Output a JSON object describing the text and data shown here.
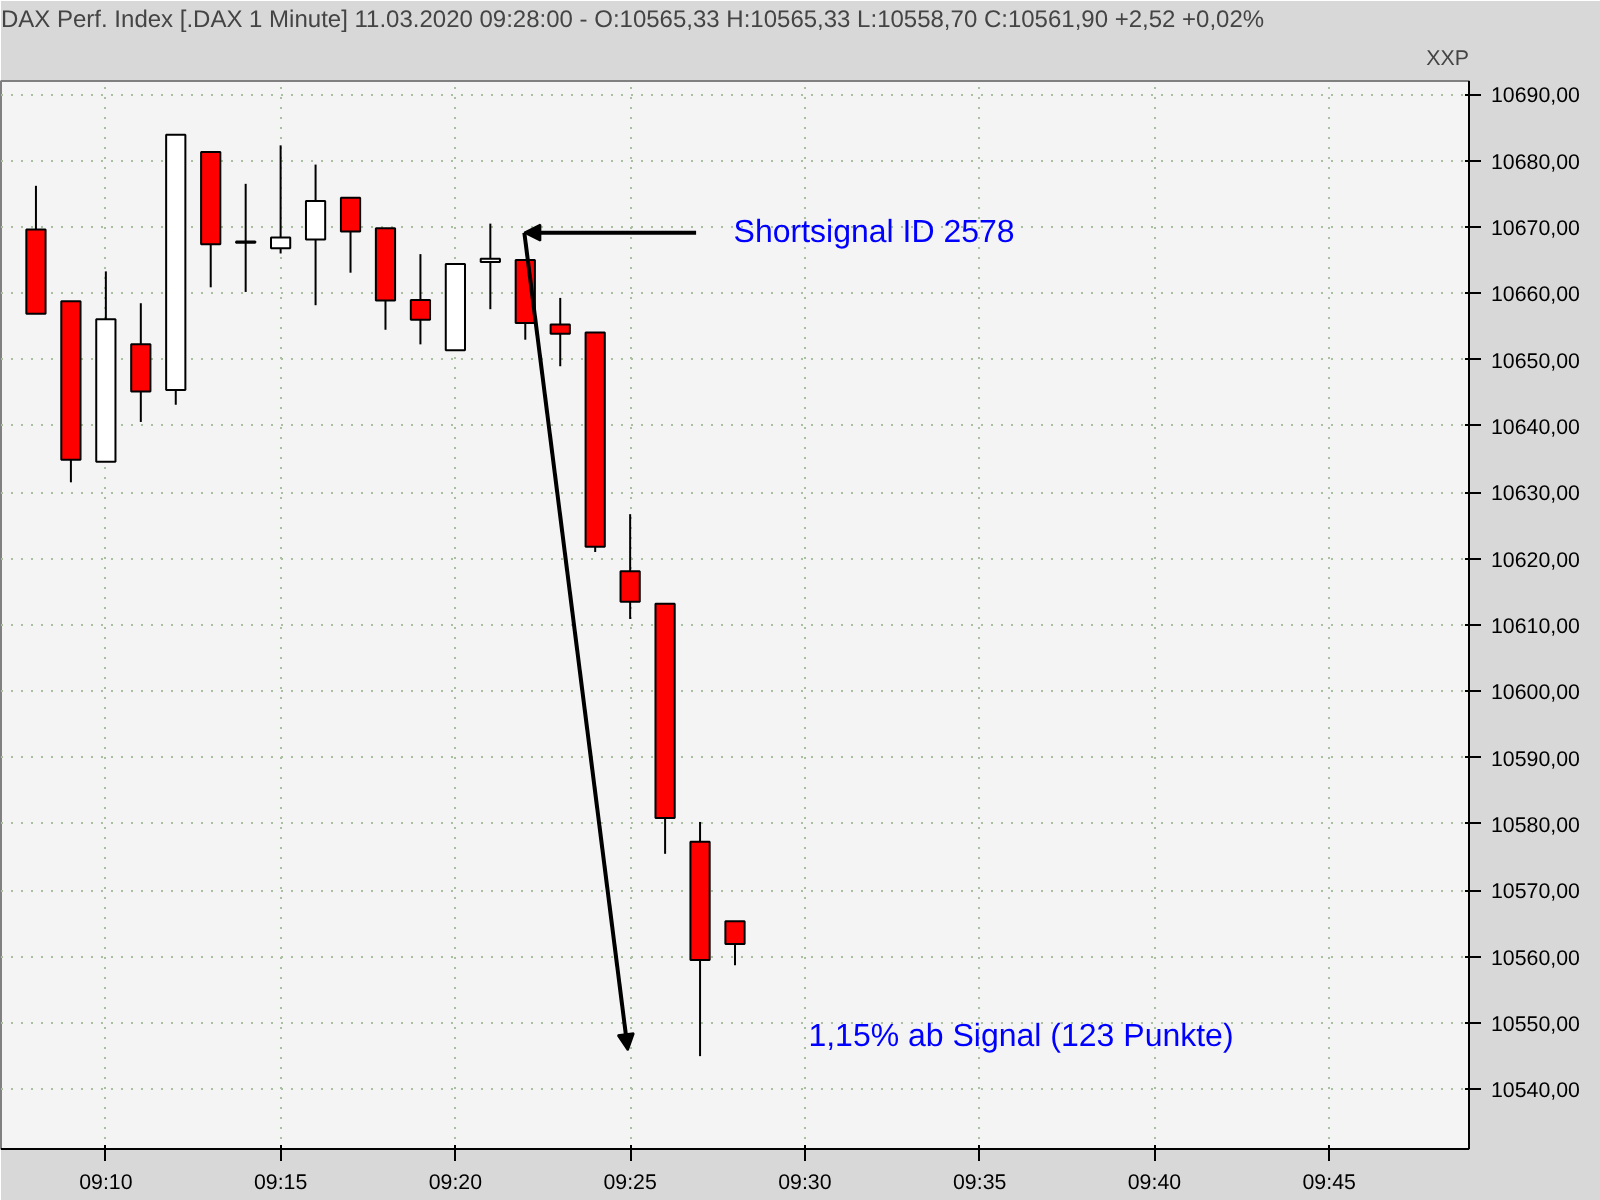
{
  "chart_data": {
    "type": "candlestick",
    "title": "DAX Perf. Index [.DAX  1 Minute] 11.03.2020 09:28:00 - O:10565,33 H:10565,33 L:10558,70 C:10561,90 +2,52 +0,02%",
    "ylabel": "XXP",
    "x": [
      "2020-03-11T09:08",
      "2020-03-11T09:09",
      "2020-03-11T09:10",
      "2020-03-11T09:11",
      "2020-03-11T09:12",
      "2020-03-11T09:13",
      "2020-03-11T09:14",
      "2020-03-11T09:15",
      "2020-03-11T09:16",
      "2020-03-11T09:17",
      "2020-03-11T09:18",
      "2020-03-11T09:19",
      "2020-03-11T09:20",
      "2020-03-11T09:21",
      "2020-03-11T09:22",
      "2020-03-11T09:23",
      "2020-03-11T09:24",
      "2020-03-11T09:25",
      "2020-03-11T09:26",
      "2020-03-11T09:27",
      "2020-03-11T09:28"
    ],
    "ohlc": [
      [
        10669.6,
        10676.2,
        10656.9,
        10656.9
      ],
      [
        10658.8,
        10658.8,
        10631.5,
        10634.9
      ],
      [
        10634.6,
        10663.3,
        10634.6,
        10656.1
      ],
      [
        10652.3,
        10658.5,
        10640.6,
        10645.2
      ],
      [
        10645.4,
        10683.9,
        10643.2,
        10683.9
      ],
      [
        10681.3,
        10681.3,
        10660.9,
        10667.4
      ],
      [
        10667.8,
        10676.5,
        10660.2,
        10667.6
      ],
      [
        10666.8,
        10682.3,
        10666.0,
        10668.4
      ],
      [
        10668.1,
        10679.4,
        10658.2,
        10673.9
      ],
      [
        10674.4,
        10674.4,
        10663.1,
        10669.3
      ],
      [
        10669.8,
        10669.8,
        10654.5,
        10658.9
      ],
      [
        10659.0,
        10665.9,
        10652.3,
        10656.0
      ],
      [
        10651.4,
        10664.4,
        10651.4,
        10664.4
      ],
      [
        10664.7,
        10670.5,
        10657.6,
        10665.2
      ],
      [
        10665.0,
        10665.0,
        10653.0,
        10655.5
      ],
      [
        10655.3,
        10659.3,
        10649.0,
        10653.9
      ],
      [
        10654.1,
        10654.1,
        10621.0,
        10621.8
      ],
      [
        10618.1,
        10626.7,
        10610.9,
        10613.5
      ],
      [
        10613.2,
        10613.2,
        10575.5,
        10580.9
      ],
      [
        10577.3,
        10580.3,
        10545.0,
        10559.5
      ],
      [
        10565.33,
        10565.33,
        10558.7,
        10561.9
      ]
    ],
    "colors": [
      "#ff0000",
      "#ff0000",
      "#ffffff",
      "#ff0000",
      "#ffffff",
      "#ff0000",
      "#ff0000",
      "#ffffff",
      "#ffffff",
      "#ff0000",
      "#ff0000",
      "#ff0000",
      "#ffffff",
      "#ffffff",
      "#ff0000",
      "#ff0000",
      "#ff0000",
      "#ff0000",
      "#ff0000",
      "#ff0000",
      "#ff0000"
    ],
    "xlim": [
      "2020-03-11T09:07",
      "2020-03-11T09:49"
    ],
    "xticks": [
      {
        "value": "2020-03-11T09:10",
        "label": "09:10"
      },
      {
        "value": "2020-03-11T09:15",
        "label": "09:15"
      },
      {
        "value": "2020-03-11T09:20",
        "label": "09:20"
      },
      {
        "value": "2020-03-11T09:25",
        "label": "09:25"
      },
      {
        "value": "2020-03-11T09:30",
        "label": "09:30"
      },
      {
        "value": "2020-03-11T09:35",
        "label": "09:35"
      },
      {
        "value": "2020-03-11T09:40",
        "label": "09:40"
      },
      {
        "value": "2020-03-11T09:45",
        "label": "09:45"
      }
    ],
    "ylim": [
      10531,
      10692
    ],
    "yticks": [
      {
        "value": 10540,
        "label": "10540,00"
      },
      {
        "value": 10550,
        "label": "10550,00"
      },
      {
        "value": 10560,
        "label": "10560,00"
      },
      {
        "value": 10570,
        "label": "10570,00"
      },
      {
        "value": 10580,
        "label": "10580,00"
      },
      {
        "value": 10590,
        "label": "10590,00"
      },
      {
        "value": 10600,
        "label": "10600,00"
      },
      {
        "value": 10610,
        "label": "10610,00"
      },
      {
        "value": 10620,
        "label": "10620,00"
      },
      {
        "value": 10630,
        "label": "10630,00"
      },
      {
        "value": 10640,
        "label": "10640,00"
      },
      {
        "value": 10650,
        "label": "10650,00"
      },
      {
        "value": 10660,
        "label": "10660,00"
      },
      {
        "value": 10670,
        "label": "10670,00"
      },
      {
        "value": 10680,
        "label": "10680,00"
      },
      {
        "value": 10690,
        "label": "10690,00"
      }
    ],
    "grid": true,
    "annotations": [
      "Shortsignal ID 2578",
      "1,15% ab Signal (123 Punkte)"
    ]
  }
}
